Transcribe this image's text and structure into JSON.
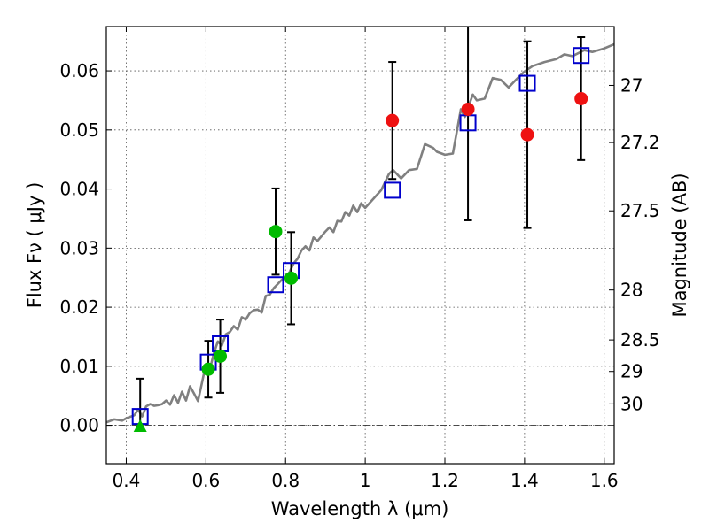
{
  "chart_data": {
    "type": "scatter",
    "xlabel": "Wavelength  λ (μm)",
    "ylabel": "Flux  Fν  ( μJy )",
    "y2label": "Magnitude (AB)",
    "xlim": [
      0.35,
      1.625
    ],
    "ylim": [
      -0.0065,
      0.0675
    ],
    "xticks": [
      0.4,
      0.6,
      0.8,
      1.0,
      1.2,
      1.4,
      1.6
    ],
    "xtick_labels": [
      "0.4",
      "0.6",
      "0.8",
      "1",
      "1.2",
      "1.4",
      "1.6"
    ],
    "yticks": [
      0.0,
      0.01,
      0.02,
      0.03,
      0.04,
      0.05,
      0.06
    ],
    "ytick_labels": [
      "0.00",
      "0.01",
      "0.02",
      "0.03",
      "0.04",
      "0.05",
      "0.06"
    ],
    "grid": true,
    "zero_line": true,
    "magnitude_ticks": [
      {
        "label": "27",
        "mag": 27.0
      },
      {
        "label": "27.2",
        "mag": 27.2
      },
      {
        "label": "27.5",
        "mag": 27.5
      },
      {
        "label": "28",
        "mag": 28.0
      },
      {
        "label": "28.5",
        "mag": 28.5
      },
      {
        "label": "29",
        "mag": 29.0
      },
      {
        "label": "30",
        "mag": 30.0
      }
    ],
    "colors": {
      "model": "#808080",
      "model_fluxes": "#0000cc",
      "green_points": "#00bb00",
      "red_points": "#ee1111",
      "error_bars": "#000000",
      "grid": "#555555"
    },
    "series": [
      {
        "name": "model spectrum",
        "kind": "line",
        "x": [
          0.35,
          0.37,
          0.39,
          0.4,
          0.42,
          0.43,
          0.44,
          0.45,
          0.46,
          0.47,
          0.48,
          0.49,
          0.5,
          0.51,
          0.52,
          0.53,
          0.54,
          0.55,
          0.56,
          0.57,
          0.58,
          0.59,
          0.6,
          0.61,
          0.62,
          0.63,
          0.64,
          0.65,
          0.66,
          0.67,
          0.68,
          0.69,
          0.7,
          0.71,
          0.72,
          0.73,
          0.74,
          0.75,
          0.76,
          0.77,
          0.78,
          0.79,
          0.8,
          0.81,
          0.82,
          0.83,
          0.84,
          0.85,
          0.86,
          0.87,
          0.88,
          0.89,
          0.9,
          0.91,
          0.92,
          0.93,
          0.94,
          0.95,
          0.96,
          0.97,
          0.98,
          0.99,
          1.0,
          1.02,
          1.04,
          1.06,
          1.07,
          1.09,
          1.11,
          1.13,
          1.15,
          1.17,
          1.18,
          1.2,
          1.22,
          1.24,
          1.25,
          1.27,
          1.28,
          1.3,
          1.32,
          1.34,
          1.36,
          1.38,
          1.4,
          1.42,
          1.45,
          1.48,
          1.5,
          1.52,
          1.55,
          1.57,
          1.6,
          1.625
        ],
        "y": [
          0.0005,
          0.001,
          0.0008,
          0.0012,
          0.0017,
          0.0027,
          0.0015,
          0.0032,
          0.0036,
          0.0033,
          0.0034,
          0.0036,
          0.0042,
          0.0035,
          0.0051,
          0.0038,
          0.0057,
          0.0042,
          0.0066,
          0.0054,
          0.0041,
          0.0072,
          0.0104,
          0.0095,
          0.0122,
          0.0142,
          0.0135,
          0.0154,
          0.0158,
          0.0168,
          0.0162,
          0.0183,
          0.0179,
          0.019,
          0.0195,
          0.0196,
          0.0191,
          0.0219,
          0.0221,
          0.0232,
          0.0239,
          0.0246,
          0.0251,
          0.0259,
          0.0274,
          0.0282,
          0.0296,
          0.0303,
          0.0296,
          0.0318,
          0.0312,
          0.032,
          0.0328,
          0.0335,
          0.0327,
          0.0346,
          0.0345,
          0.0361,
          0.0355,
          0.0372,
          0.0361,
          0.0376,
          0.0368,
          0.0383,
          0.0398,
          0.0426,
          0.0432,
          0.0418,
          0.0432,
          0.0434,
          0.0476,
          0.047,
          0.0463,
          0.0458,
          0.046,
          0.0535,
          0.0522,
          0.056,
          0.055,
          0.0553,
          0.0588,
          0.0585,
          0.0572,
          0.0586,
          0.0599,
          0.0608,
          0.0615,
          0.062,
          0.0628,
          0.0625,
          0.0635,
          0.0632,
          0.0638,
          0.0645
        ]
      },
      {
        "name": "model fluxes",
        "kind": "open-square",
        "x": [
          0.435,
          0.606,
          0.636,
          0.775,
          0.814,
          1.068,
          1.258,
          1.407,
          1.542
        ],
        "y": [
          0.0015,
          0.0107,
          0.0138,
          0.0238,
          0.0262,
          0.0398,
          0.0512,
          0.0579,
          0.0626
        ]
      },
      {
        "name": "green detections",
        "kind": "filled-circle",
        "x": [
          0.606,
          0.636,
          0.775,
          0.814
        ],
        "y": [
          0.0095,
          0.0117,
          0.0328,
          0.0249
        ],
        "yerr": [
          0.0048,
          0.0062,
          0.0073,
          0.0078
        ]
      },
      {
        "name": "red detections",
        "kind": "filled-circle",
        "x": [
          1.068,
          1.258,
          1.407,
          1.542
        ],
        "y": [
          0.0516,
          0.0535,
          0.0492,
          0.0553
        ],
        "yerr": [
          0.0099,
          0.0188,
          0.0158,
          0.0104
        ]
      },
      {
        "name": "upper limit",
        "kind": "triangle",
        "x": [
          0.435
        ],
        "y": [
          -0.0002
        ],
        "yerr_up": [
          0.0081
        ]
      }
    ]
  }
}
